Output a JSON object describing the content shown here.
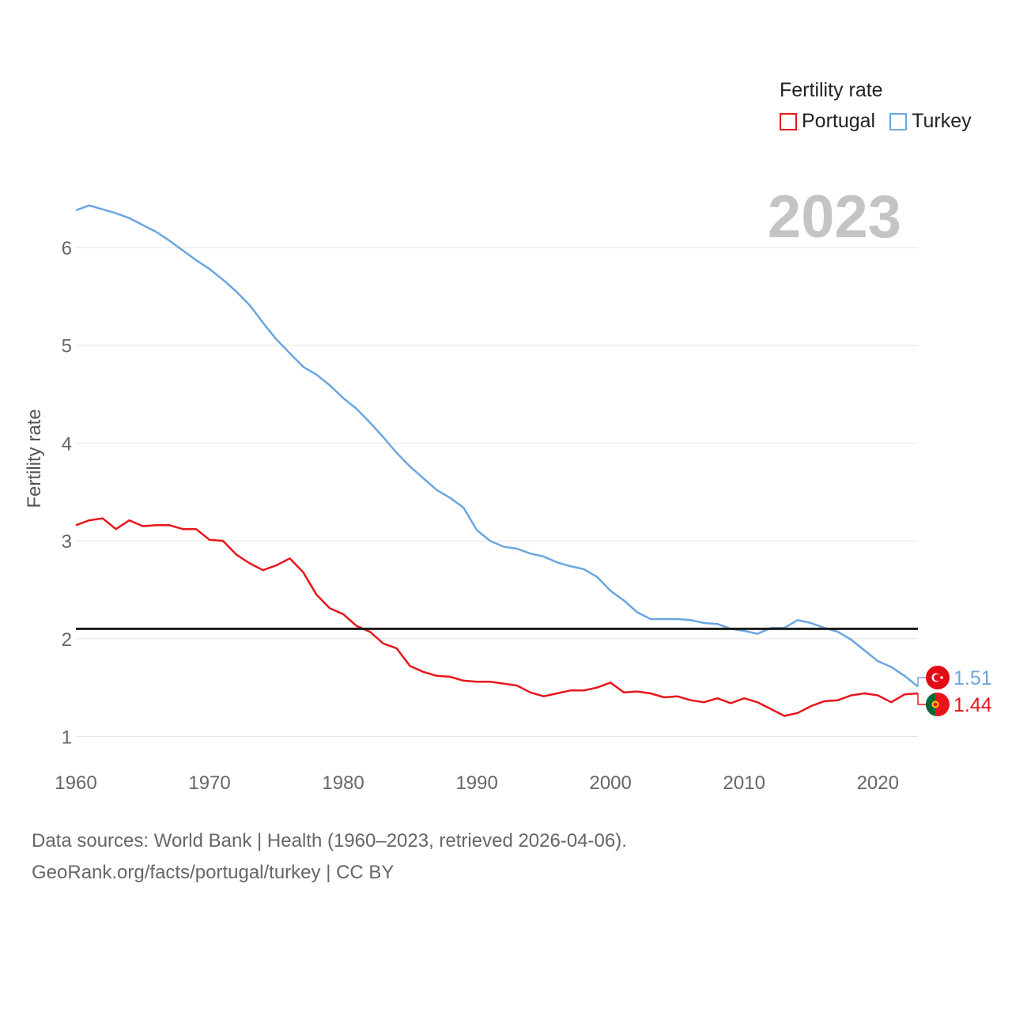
{
  "chart_data": {
    "type": "line",
    "ylabel": "Fertility rate",
    "xlabel": "",
    "year_badge": "2023",
    "xlim": [
      1960,
      2023
    ],
    "ylim": [
      0.85,
      6.55
    ],
    "x_ticks": [
      1960,
      1970,
      1980,
      1990,
      2000,
      2010,
      2020
    ],
    "y_ticks": [
      1,
      2,
      3,
      4,
      5,
      6
    ],
    "reference_line": 2.1,
    "legend": {
      "title": "Fertility rate",
      "position": "top-right"
    },
    "x": [
      1960,
      1961,
      1962,
      1963,
      1964,
      1965,
      1966,
      1967,
      1968,
      1969,
      1970,
      1971,
      1972,
      1973,
      1974,
      1975,
      1976,
      1977,
      1978,
      1979,
      1980,
      1981,
      1982,
      1983,
      1984,
      1985,
      1986,
      1987,
      1988,
      1989,
      1990,
      1991,
      1992,
      1993,
      1994,
      1995,
      1996,
      1997,
      1998,
      1999,
      2000,
      2001,
      2002,
      2003,
      2004,
      2005,
      2006,
      2007,
      2008,
      2009,
      2010,
      2011,
      2012,
      2013,
      2014,
      2015,
      2016,
      2017,
      2018,
      2019,
      2020,
      2021,
      2022,
      2023
    ],
    "series": [
      {
        "name": "Portugal",
        "color": "#e8161b",
        "end_label": "1.44",
        "values": [
          3.16,
          3.21,
          3.23,
          3.12,
          3.21,
          3.15,
          3.16,
          3.16,
          3.12,
          3.12,
          3.01,
          3.0,
          2.86,
          2.77,
          2.7,
          2.75,
          2.82,
          2.68,
          2.45,
          2.31,
          2.25,
          2.13,
          2.07,
          1.95,
          1.9,
          1.72,
          1.66,
          1.62,
          1.61,
          1.57,
          1.56,
          1.56,
          1.54,
          1.52,
          1.45,
          1.41,
          1.44,
          1.47,
          1.47,
          1.5,
          1.55,
          1.45,
          1.46,
          1.44,
          1.4,
          1.41,
          1.37,
          1.35,
          1.39,
          1.34,
          1.39,
          1.35,
          1.28,
          1.21,
          1.24,
          1.31,
          1.36,
          1.37,
          1.42,
          1.44,
          1.42,
          1.35,
          1.43,
          1.44
        ]
      },
      {
        "name": "Turkey",
        "color": "#6aa6e0",
        "end_label": "1.51",
        "values": [
          6.38,
          6.43,
          6.39,
          6.35,
          6.3,
          6.23,
          6.16,
          6.07,
          5.97,
          5.87,
          5.78,
          5.67,
          5.55,
          5.41,
          5.23,
          5.06,
          4.92,
          4.78,
          4.7,
          4.59,
          4.46,
          4.35,
          4.21,
          4.06,
          3.9,
          3.76,
          3.64,
          3.52,
          3.44,
          3.34,
          3.11,
          3.0,
          2.94,
          2.92,
          2.87,
          2.84,
          2.78,
          2.74,
          2.71,
          2.63,
          2.49,
          2.39,
          2.27,
          2.2,
          2.2,
          2.2,
          2.19,
          2.16,
          2.15,
          2.1,
          2.08,
          2.05,
          2.11,
          2.11,
          2.19,
          2.16,
          2.11,
          2.07,
          1.99,
          1.88,
          1.77,
          1.71,
          1.62,
          1.51
        ]
      }
    ]
  },
  "footer": {
    "line1": "Data sources: World Bank | Health (1960–2023, retrieved 2026-04-06).",
    "line2": "GeoRank.org/facts/portugal/turkey | CC BY"
  }
}
